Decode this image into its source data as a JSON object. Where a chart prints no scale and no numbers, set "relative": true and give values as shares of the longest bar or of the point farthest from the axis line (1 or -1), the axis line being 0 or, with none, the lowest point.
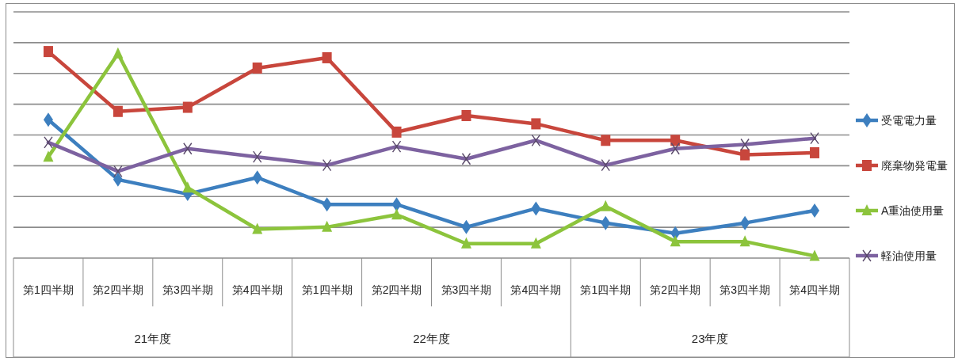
{
  "chart_data": {
    "type": "line",
    "relative": true,
    "grid": "y",
    "legend": "right",
    "categories": [
      "第1四半期",
      "第2四半期",
      "第3四半期",
      "第4四半期",
      "第1四半期",
      "第2四半期",
      "第3四半期",
      "第4四半期",
      "第1四半期",
      "第2四半期",
      "第3四半期",
      "第4四半期"
    ],
    "annotations": [
      "21年度",
      "22年度",
      "23年度"
    ],
    "series": [
      {
        "name": "受電電力量",
        "color": "#3d7fbf",
        "marker": "diamond",
        "values": [
          0.67,
          0.38,
          0.31,
          0.39,
          0.26,
          0.26,
          0.15,
          0.24,
          0.17,
          0.12,
          0.17,
          0.23
        ]
      },
      {
        "name": "廃棄物発電量",
        "color": "#c8463c",
        "marker": "square",
        "values": [
          1,
          0.71,
          0.73,
          0.92,
          0.97,
          0.61,
          0.69,
          0.65,
          0.57,
          0.57,
          0.5,
          0.51
        ]
      },
      {
        "name": "A重油使用量",
        "color": "#8cc43c",
        "marker": "triangle",
        "values": [
          0.49,
          0.99,
          0.34,
          0.14,
          0.15,
          0.21,
          0.07,
          0.07,
          0.25,
          0.08,
          0.08,
          0.01
        ]
      },
      {
        "name": "軽油使用量",
        "color": "#7d62a0",
        "marker": "cross",
        "values": [
          0.56,
          0.42,
          0.53,
          0.49,
          0.45,
          0.54,
          0.48,
          0.57,
          0.45,
          0.53,
          0.55,
          0.58
        ]
      }
    ]
  }
}
